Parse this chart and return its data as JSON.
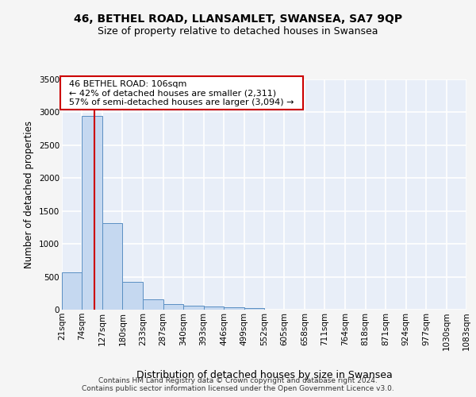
{
  "title1": "46, BETHEL ROAD, LLANSAMLET, SWANSEA, SA7 9QP",
  "title2": "Size of property relative to detached houses in Swansea",
  "xlabel": "Distribution of detached houses by size in Swansea",
  "ylabel": "Number of detached properties",
  "bin_edges": [
    21,
    74,
    127,
    180,
    233,
    287,
    340,
    393,
    446,
    499,
    552,
    605,
    658,
    711,
    764,
    818,
    871,
    924,
    977,
    1030,
    1083
  ],
  "bar_heights": [
    570,
    2950,
    1320,
    420,
    160,
    80,
    55,
    45,
    35,
    25,
    0,
    0,
    0,
    0,
    0,
    0,
    0,
    0,
    0,
    0
  ],
  "bar_color": "#c5d8f0",
  "bar_edge_color": "#5a8fc3",
  "red_line_x": 106,
  "annotation_line1": "46 BETHEL ROAD: 106sqm",
  "annotation_line2": "← 42% of detached houses are smaller (2,311)",
  "annotation_line3": "57% of semi-detached houses are larger (3,094) →",
  "annotation_box_color": "#ffffff",
  "annotation_box_edge_color": "#cc0000",
  "ylim": [
    0,
    3500
  ],
  "yticks": [
    0,
    500,
    1000,
    1500,
    2000,
    2500,
    3000,
    3500
  ],
  "background_color": "#e8eef8",
  "grid_color": "#ffffff",
  "footer_text": "Contains HM Land Registry data © Crown copyright and database right 2024.\nContains public sector information licensed under the Open Government Licence v3.0.",
  "title1_fontsize": 10,
  "title2_fontsize": 9,
  "xlabel_fontsize": 9,
  "ylabel_fontsize": 8.5,
  "tick_fontsize": 7.5,
  "footer_fontsize": 6.5
}
